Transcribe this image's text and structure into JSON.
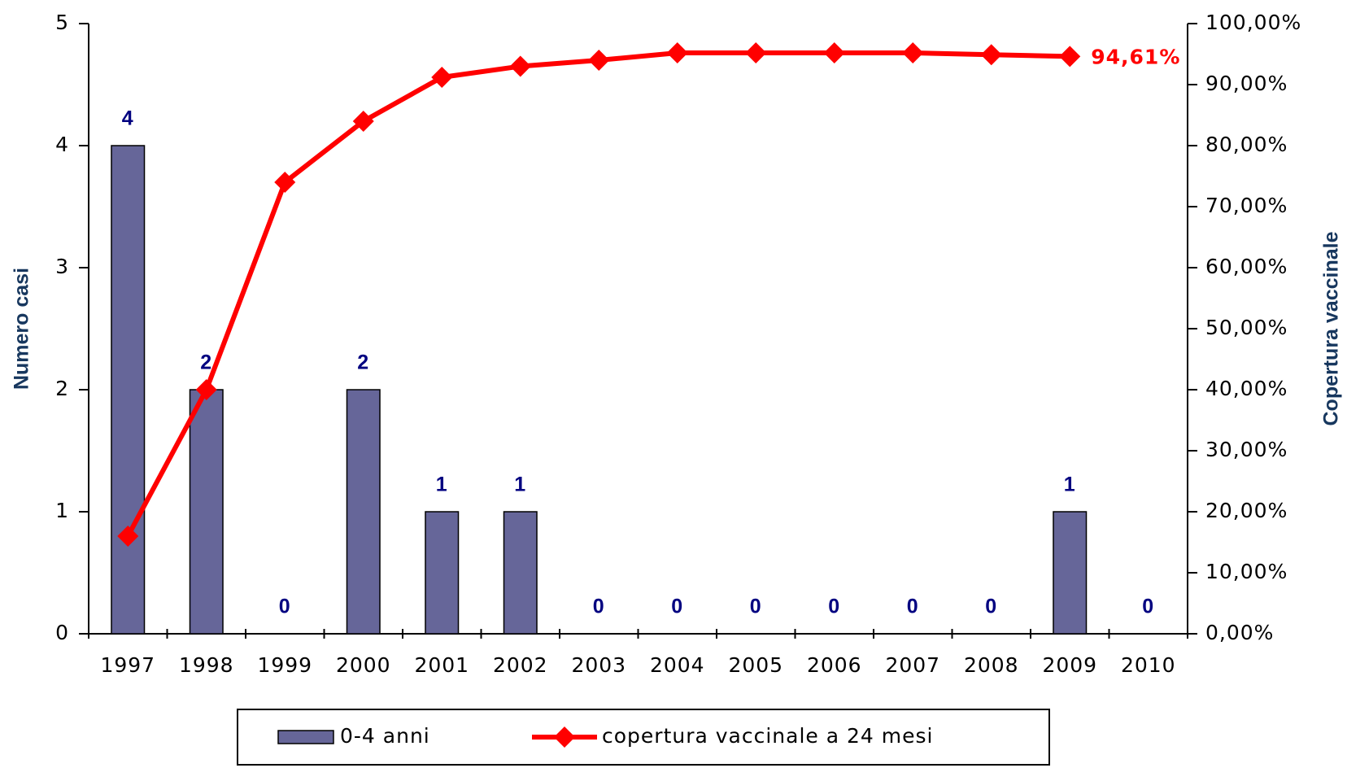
{
  "chart_data": {
    "type": "bar_line",
    "categories": [
      "1997",
      "1998",
      "1999",
      "2000",
      "2001",
      "2002",
      "2003",
      "2004",
      "2005",
      "2006",
      "2007",
      "2008",
      "2009",
      "2010"
    ],
    "series": [
      {
        "name": "0-4 anni",
        "type": "bar",
        "color": "#666699",
        "values": [
          4,
          2,
          0,
          2,
          1,
          1,
          0,
          0,
          0,
          0,
          0,
          0,
          1,
          0
        ]
      },
      {
        "name": "copertura vaccinale a 24 mesi",
        "type": "line",
        "axis": "y2",
        "color": "#ff0000",
        "values": [
          16,
          40,
          74,
          84,
          91.2,
          93,
          94,
          95.2,
          95.2,
          95.2,
          95.2,
          94.9,
          94.61,
          null
        ],
        "value_labels": [
          null,
          null,
          null,
          null,
          null,
          null,
          null,
          null,
          null,
          null,
          null,
          null,
          "94,61%",
          null
        ]
      }
    ],
    "ylabel": "Numero casi",
    "y2label": "Copertura vaccinale",
    "ylim": [
      0,
      5
    ],
    "yticks": [
      0,
      1,
      2,
      3,
      4,
      5
    ],
    "y2lim": [
      0,
      100
    ],
    "y2ticks": [
      {
        "value": 0,
        "label": "0,00%"
      },
      {
        "value": 10,
        "label": "10,00%"
      },
      {
        "value": 20,
        "label": "20,00%"
      },
      {
        "value": 30,
        "label": "30,00%"
      },
      {
        "value": 40,
        "label": "40,00%"
      },
      {
        "value": 50,
        "label": "50,00%"
      },
      {
        "value": 60,
        "label": "60,00%"
      },
      {
        "value": 70,
        "label": "70,00%"
      },
      {
        "value": 80,
        "label": "80,00%"
      },
      {
        "value": 90,
        "label": "90,00%"
      },
      {
        "value": 100,
        "label": "100,00%"
      }
    ],
    "legend": "bottom"
  }
}
